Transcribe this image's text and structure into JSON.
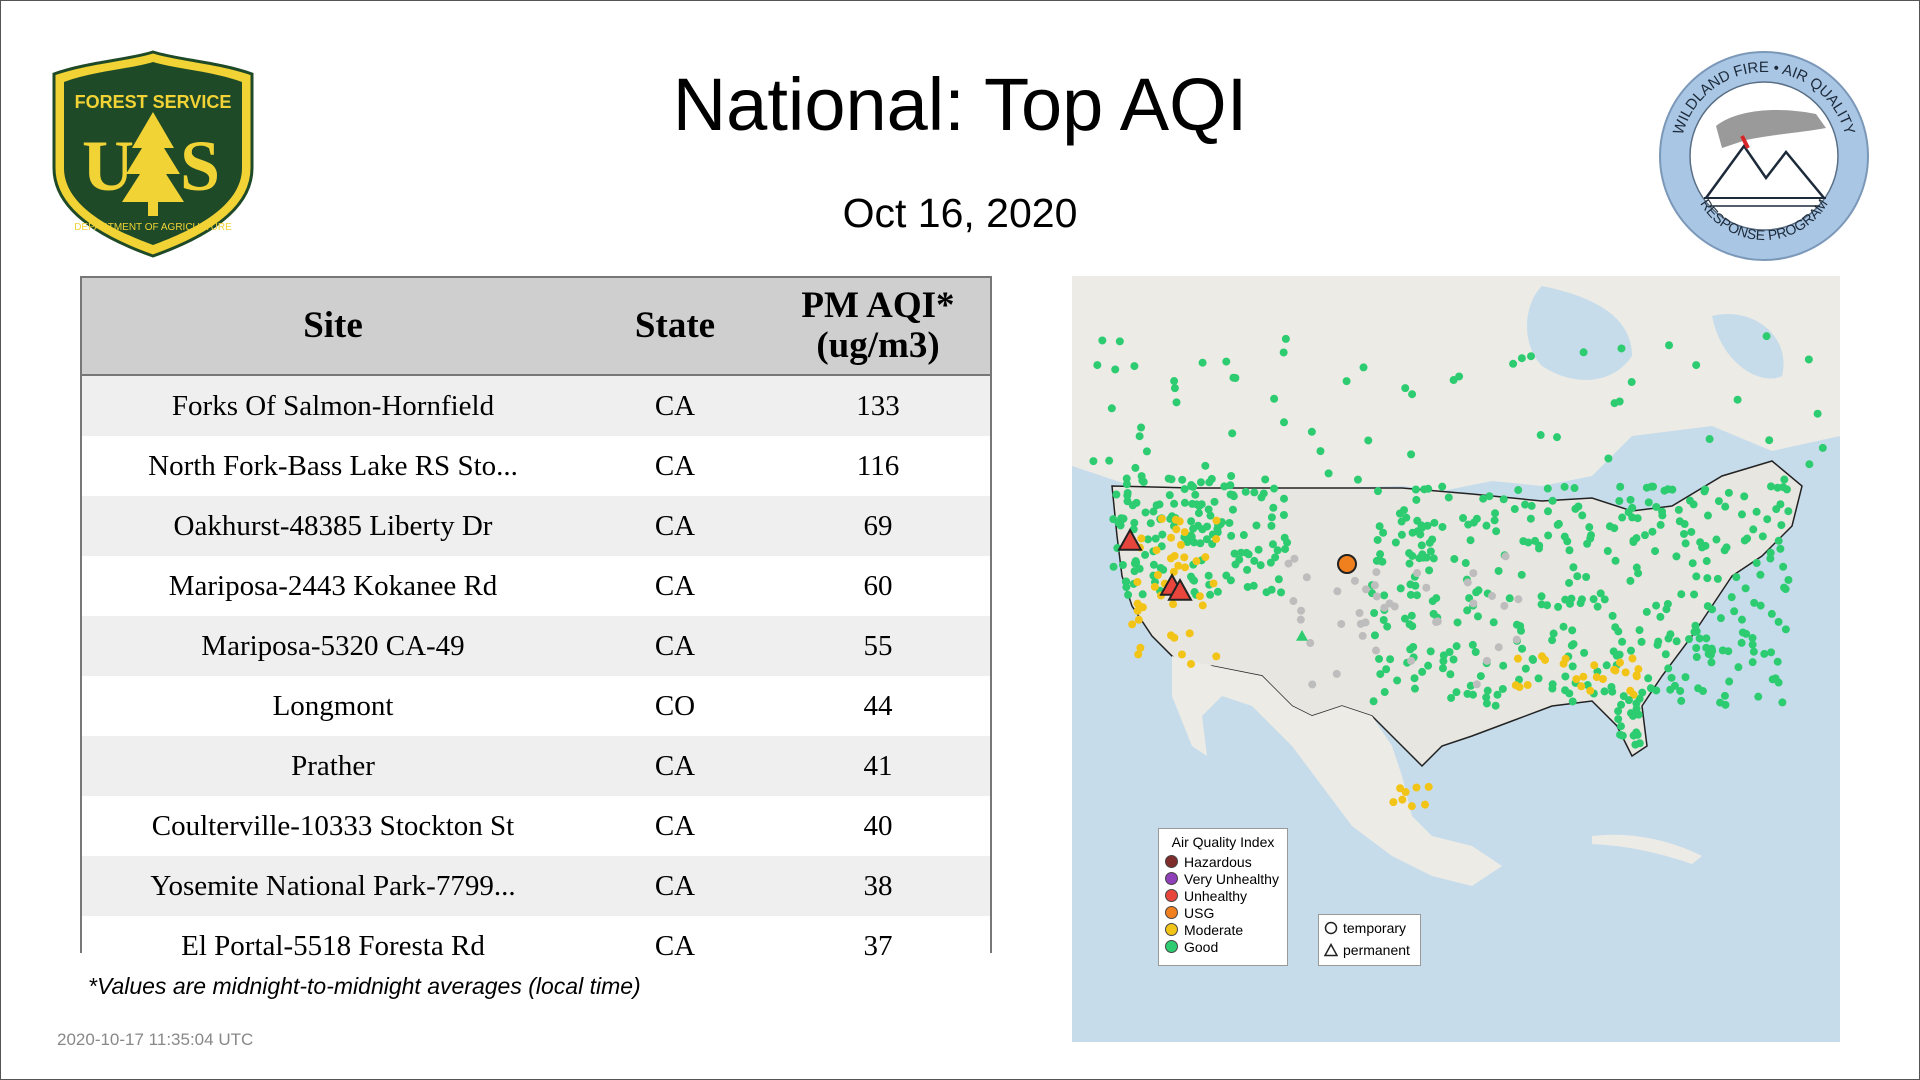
{
  "header": {
    "title": "National: Top AQI",
    "date": "Oct 16, 2020"
  },
  "logos": {
    "usfs": {
      "top_text": "FOREST SERVICE",
      "letters": "US",
      "bottom_text": "DEPARTMENT OF AGRICULTURE",
      "color": "#1f4a28",
      "accent": "#f2d335"
    },
    "wfa": {
      "top_text": "WILDLAND FIRE • AIR QUALITY",
      "bottom_text": "RESPONSE PROGRAM",
      "ring_color": "#a9c6e4"
    }
  },
  "table": {
    "columns": [
      "Site",
      "State",
      "PM AQI*",
      "(ug/m3)"
    ],
    "rows": [
      {
        "site": "Forks Of Salmon-Hornfield",
        "state": "CA",
        "aqi": "133"
      },
      {
        "site": "North Fork-Bass Lake RS Sto...",
        "state": "CA",
        "aqi": "116"
      },
      {
        "site": "Oakhurst-48385 Liberty Dr",
        "state": "CA",
        "aqi": "69"
      },
      {
        "site": "Mariposa-2443 Kokanee Rd",
        "state": "CA",
        "aqi": "60"
      },
      {
        "site": "Mariposa-5320 CA-49",
        "state": "CA",
        "aqi": "55"
      },
      {
        "site": "Longmont",
        "state": "CO",
        "aqi": "44"
      },
      {
        "site": "Prather",
        "state": "CA",
        "aqi": "41"
      },
      {
        "site": "Coulterville-10333 Stockton St",
        "state": "CA",
        "aqi": "40"
      },
      {
        "site": "Yosemite National Park-7799...",
        "state": "CA",
        "aqi": "38"
      },
      {
        "site": "El Portal-5518 Foresta Rd",
        "state": "CA",
        "aqi": "37"
      }
    ]
  },
  "footnote": "*Values are midnight-to-midnight averages (local time)",
  "timestamp": "2020-10-17 11:35:04 UTC",
  "map_legend": {
    "title": "Air Quality Index",
    "categories": [
      {
        "label": "Hazardous",
        "color": "#7e2c2c"
      },
      {
        "label": "Very Unhealthy",
        "color": "#8f3fb8"
      },
      {
        "label": "Unhealthy",
        "color": "#e8463d"
      },
      {
        "label": "USG",
        "color": "#f07f1e"
      },
      {
        "label": "Moderate",
        "color": "#f3c418"
      },
      {
        "label": "Good",
        "color": "#2ecc71"
      }
    ],
    "shapes": [
      {
        "label": "temporary",
        "icon": "circle-icon"
      },
      {
        "label": "permanent",
        "icon": "triangle-icon"
      }
    ]
  }
}
